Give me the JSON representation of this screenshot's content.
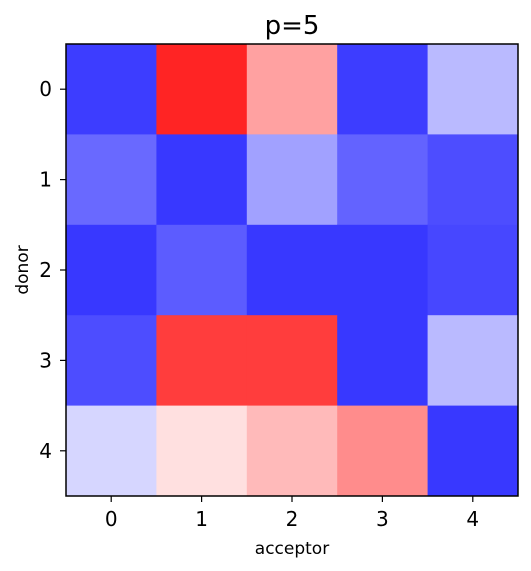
{
  "chart_data": {
    "type": "heatmap",
    "title": "p=5",
    "xlabel": "acceptor",
    "ylabel": "donor",
    "x_categories": [
      "0",
      "1",
      "2",
      "3",
      "4"
    ],
    "y_categories": [
      "0",
      "1",
      "2",
      "3",
      "4"
    ],
    "colormap": "bwr",
    "colors": {
      "low": "#0000ff",
      "mid": "#ffffff",
      "high": "#ff0000"
    },
    "values": [
      [
        -0.76,
        0.86,
        0.37,
        -0.76,
        -0.27
      ],
      [
        -0.59,
        -0.78,
        -0.37,
        -0.61,
        -0.7
      ],
      [
        -0.78,
        -0.64,
        -0.78,
        -0.78,
        -0.72
      ],
      [
        -0.7,
        0.76,
        0.76,
        -0.78,
        -0.27
      ],
      [
        -0.16,
        0.12,
        0.27,
        0.45,
        -0.78
      ]
    ],
    "vmin": -1,
    "vmax": 1
  }
}
